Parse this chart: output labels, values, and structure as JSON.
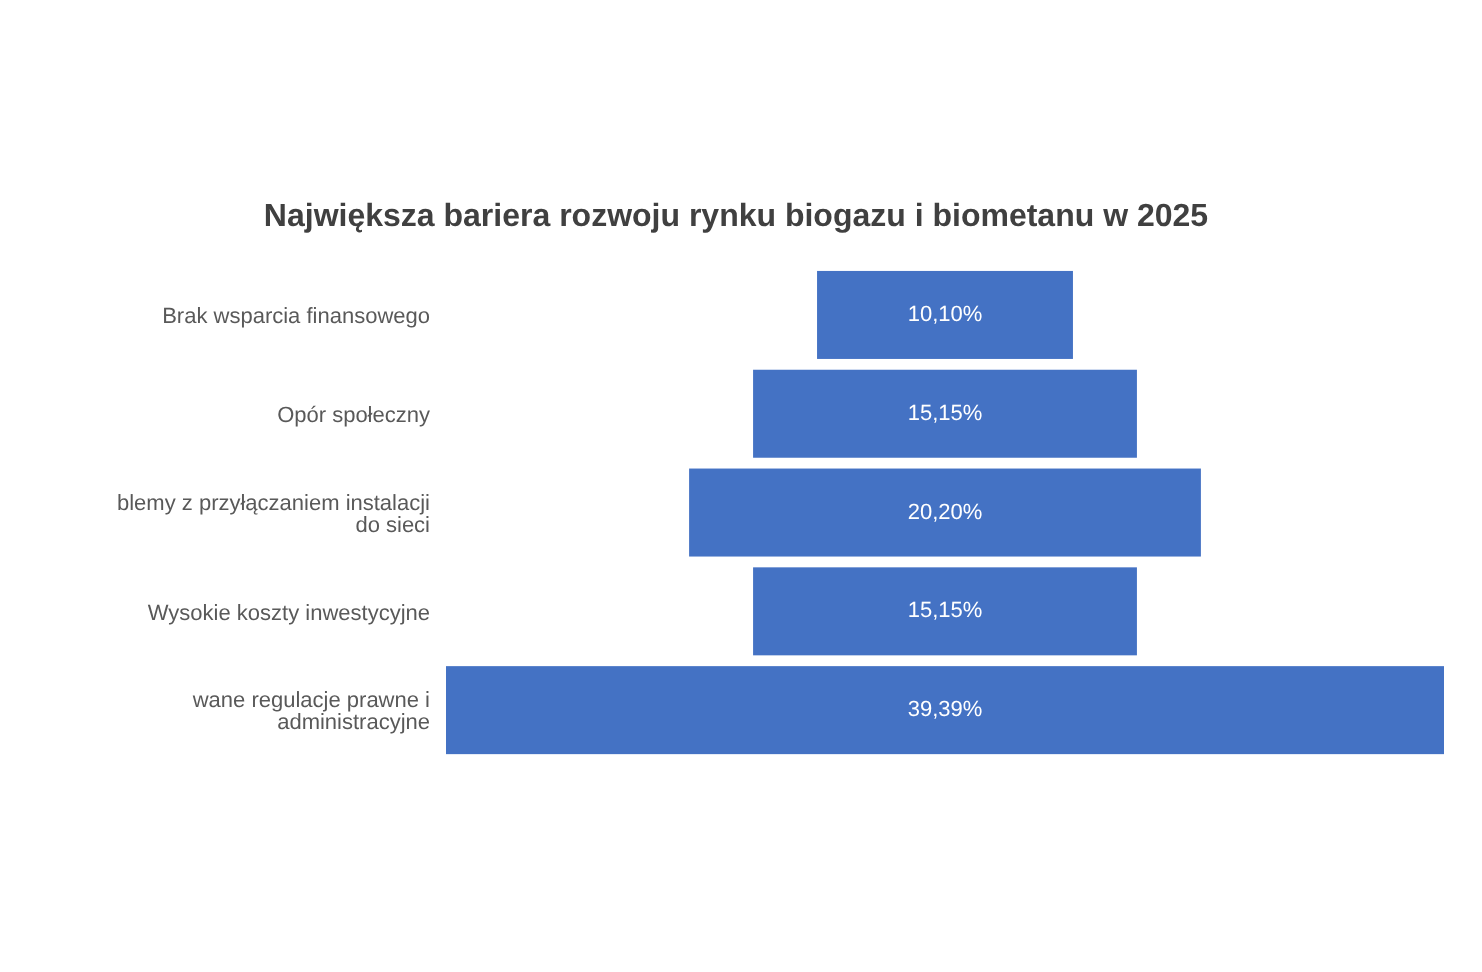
{
  "chart_data": {
    "type": "other",
    "title": "Największa bariera rozwoju rynku biogazu i biometanu w 2025",
    "categories": [
      "Brak wsparcia finansowego",
      "Opór społeczny",
      "blemy z przyłączaniem instalacji do sieci",
      "Wysokie koszty inwestycyjne",
      "wane regulacje prawne i administracyjne"
    ],
    "values": [
      10.1,
      15.15,
      20.2,
      15.15,
      39.39
    ],
    "value_labels": [
      "10,10%",
      "15,15%",
      "20,20%",
      "15,15%",
      "39,39%"
    ],
    "color": "#4472c4"
  }
}
